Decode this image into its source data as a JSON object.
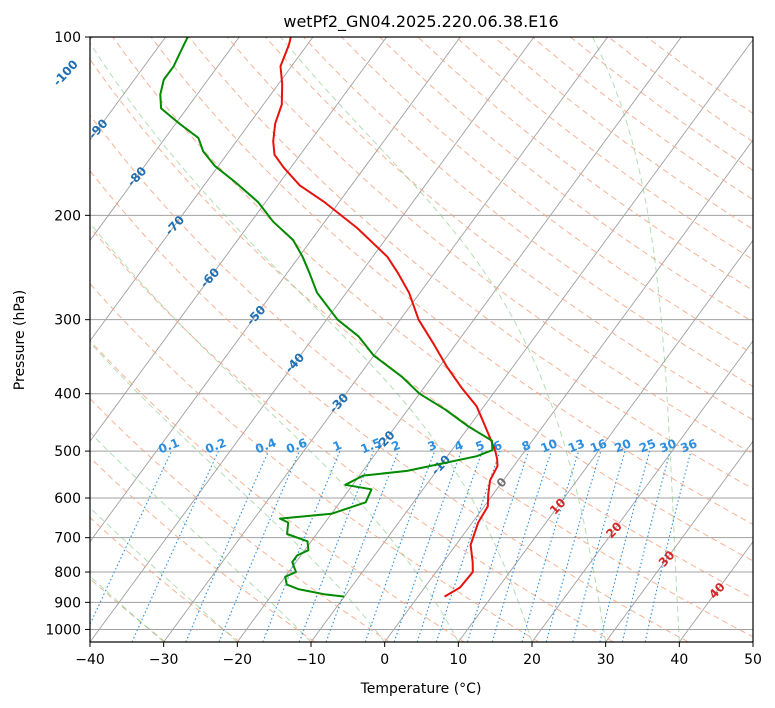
{
  "chart_data": {
    "type": "line",
    "diagram": "skew-T log-P",
    "title": "wetPf2_GN04.2025.220.06.38.E16",
    "xlabel": "Temperature (°C)",
    "ylabel": "Pressure (hPa)",
    "xlim": [
      -40,
      50
    ],
    "ylim": [
      1050,
      100
    ],
    "y_scale": "log",
    "x_ticks": [
      -40,
      -30,
      -20,
      -10,
      0,
      10,
      20,
      30,
      40,
      50
    ],
    "x_tick_labels": [
      "−40",
      "−30",
      "−20",
      "−10",
      "0",
      "10",
      "20",
      "30",
      "40",
      "50"
    ],
    "y_ticks": [
      100,
      200,
      300,
      400,
      500,
      600,
      700,
      800,
      900,
      1000
    ],
    "y_tick_labels": [
      "100",
      "200",
      "300",
      "400",
      "500",
      "600",
      "700",
      "800",
      "900",
      "1000"
    ],
    "grid": true,
    "series": [
      {
        "role": "temperature",
        "color": "#e8120c",
        "points": [
          [
            3.6,
            880
          ],
          [
            4.8,
            850
          ],
          [
            5.0,
            800
          ],
          [
            4.0,
            770
          ],
          [
            2.0,
            720
          ],
          [
            0.8,
            660
          ],
          [
            0.5,
            620
          ],
          [
            -0.7,
            590
          ],
          [
            -1.8,
            560
          ],
          [
            -2.2,
            530
          ],
          [
            -3.0,
            515
          ],
          [
            -4.0,
            500
          ],
          [
            -5.6,
            480
          ],
          [
            -8.2,
            450
          ],
          [
            -11.0,
            420
          ],
          [
            -15.0,
            390
          ],
          [
            -19.0,
            360
          ],
          [
            -23.0,
            330
          ],
          [
            -27.5,
            300
          ],
          [
            -31.5,
            270
          ],
          [
            -35.0,
            250
          ],
          [
            -38.0,
            235
          ],
          [
            -45.0,
            210
          ],
          [
            -52.0,
            190
          ],
          [
            -57.0,
            178
          ],
          [
            -61.0,
            166
          ],
          [
            -63.5,
            158
          ],
          [
            -65.0,
            150
          ],
          [
            -66.5,
            140
          ],
          [
            -67.5,
            130
          ],
          [
            -69.5,
            120
          ],
          [
            -71.5,
            112
          ],
          [
            -72.5,
            103
          ],
          [
            -73.0,
            100
          ]
        ]
      },
      {
        "role": "dewpoint",
        "color": "#008a00",
        "points": [
          [
            -10.0,
            880
          ],
          [
            -13.0,
            872
          ],
          [
            -17.0,
            855
          ],
          [
            -19.0,
            840
          ],
          [
            -20.0,
            815
          ],
          [
            -19.0,
            800
          ],
          [
            -20.5,
            770
          ],
          [
            -20.5,
            750
          ],
          [
            -19.5,
            735
          ],
          [
            -20.5,
            710
          ],
          [
            -24.0,
            690
          ],
          [
            -25.0,
            660
          ],
          [
            -26.5,
            650
          ],
          [
            -20.0,
            638
          ],
          [
            -16.5,
            610
          ],
          [
            -17.0,
            580
          ],
          [
            -21.0,
            570
          ],
          [
            -19.5,
            550
          ],
          [
            -14.0,
            540
          ],
          [
            -6.0,
            510
          ],
          [
            -4.5,
            498
          ],
          [
            -5.5,
            480
          ],
          [
            -10.0,
            455
          ],
          [
            -15.0,
            425
          ],
          [
            -20.0,
            400
          ],
          [
            -24.0,
            375
          ],
          [
            -30.0,
            345
          ],
          [
            -34.0,
            320
          ],
          [
            -38.5,
            300
          ],
          [
            -44.0,
            270
          ],
          [
            -47.0,
            250
          ],
          [
            -49.5,
            235
          ],
          [
            -52.5,
            220
          ],
          [
            -57.0,
            205
          ],
          [
            -61.0,
            190
          ],
          [
            -66.0,
            176
          ],
          [
            -70.5,
            165
          ],
          [
            -73.5,
            156
          ],
          [
            -75.5,
            148
          ],
          [
            -79.5,
            140
          ],
          [
            -83.5,
            132
          ],
          [
            -85.0,
            125
          ],
          [
            -86.0,
            118
          ],
          [
            -86.0,
            112
          ],
          [
            -86.5,
            106
          ],
          [
            -87.0,
            100
          ]
        ]
      }
    ],
    "isotherm_labels": [
      "-100",
      "-90",
      "-80",
      "-70",
      "-60",
      "-50",
      "-40",
      "-30",
      "-20",
      "-10",
      "0",
      "10",
      "20",
      "30",
      "40"
    ],
    "mixing_ratio_labels": [
      "0.1",
      "0.2",
      "0.4",
      "0.6",
      "1",
      "1.5",
      "2",
      "3",
      "4",
      "5",
      "6",
      "8",
      "10",
      "13",
      "16",
      "20",
      "25",
      "30",
      "36"
    ],
    "colors": {
      "temperature": "#e8120c",
      "dewpoint": "#008a00",
      "dry_adiabat": "#f4a582",
      "moist_adiabat": "#74c476",
      "mixing_ratio": "#2b8ee0",
      "isotherm_grid": "#a0a0a0",
      "cold_label": "#1f6fb2",
      "warm_label": "#d62728",
      "zero_label": "#707070"
    }
  }
}
